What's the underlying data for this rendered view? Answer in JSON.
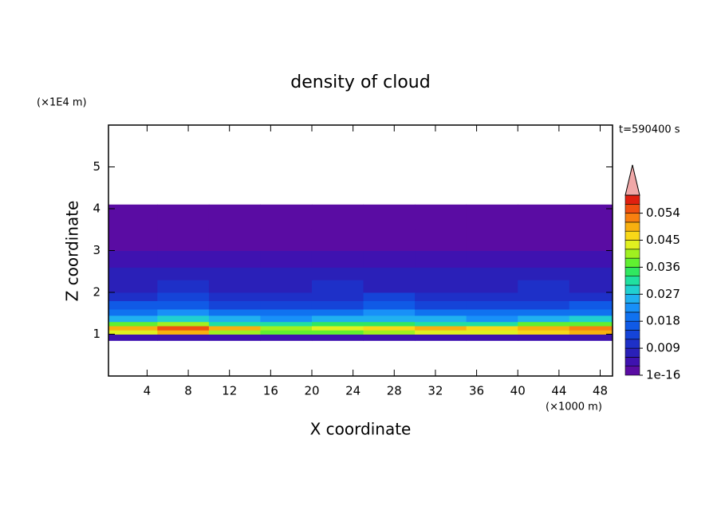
{
  "chart_data": {
    "type": "heatmap",
    "title": "density of cloud",
    "x_label": "X coordinate",
    "y_label": "Z coordinate",
    "x_unit": "(×1000 m)",
    "y_unit": "(×1E4 m)",
    "annotation": "t=590400 s",
    "xlim": [
      0.25,
      49.2
    ],
    "xticks": [
      4,
      8,
      12,
      16,
      20,
      24,
      28,
      32,
      36,
      40,
      44,
      48
    ],
    "ylim": [
      0,
      6
    ],
    "yticks": [
      1,
      2,
      3,
      4,
      5
    ],
    "x_edges": [
      0.25,
      5,
      10,
      15,
      20,
      25,
      30,
      35,
      40,
      45,
      49.2
    ],
    "y_edges": [
      0.85,
      1.0,
      1.1,
      1.2,
      1.3,
      1.45,
      1.6,
      1.8,
      2.0,
      2.3,
      2.6,
      3.0,
      3.5,
      4.1
    ],
    "values": [
      [
        0.004,
        0.005,
        0.004,
        0.004,
        0.005,
        0.004,
        0.004,
        0.005,
        0.004,
        0.004
      ],
      [
        0.042,
        0.048,
        0.04,
        0.036,
        0.038,
        0.04,
        0.044,
        0.042,
        0.046,
        0.05
      ],
      [
        0.05,
        0.055,
        0.048,
        0.04,
        0.042,
        0.045,
        0.048,
        0.046,
        0.05,
        0.052
      ],
      [
        0.036,
        0.04,
        0.032,
        0.03,
        0.034,
        0.033,
        0.03,
        0.032,
        0.036,
        0.038
      ],
      [
        0.026,
        0.028,
        0.024,
        0.022,
        0.025,
        0.026,
        0.024,
        0.023,
        0.025,
        0.027
      ],
      [
        0.02,
        0.021,
        0.019,
        0.018,
        0.02,
        0.021,
        0.019,
        0.018,
        0.019,
        0.02
      ],
      [
        0.015,
        0.016,
        0.014,
        0.013,
        0.014,
        0.015,
        0.014,
        0.013,
        0.014,
        0.015
      ],
      [
        0.011,
        0.012,
        0.011,
        0.01,
        0.011,
        0.012,
        0.011,
        0.01,
        0.011,
        0.011
      ],
      [
        0.008,
        0.009,
        0.008,
        0.008,
        0.009,
        0.008,
        0.008,
        0.008,
        0.009,
        0.008
      ],
      [
        0.006,
        0.007,
        0.006,
        0.006,
        0.006,
        0.007,
        0.006,
        0.006,
        0.006,
        0.007
      ],
      [
        0.004,
        0.004,
        0.004,
        0.004,
        0.003,
        0.003,
        0.003,
        0.004,
        0.004,
        0.004
      ],
      [
        0.002,
        0.002,
        0.002,
        0.002,
        0.002,
        0.001,
        0.001,
        0.002,
        0.002,
        0.002
      ],
      [
        0.001,
        0.001,
        0.001,
        0.001,
        0.001,
        0.001,
        0.001,
        0.001,
        0.001,
        0.001
      ]
    ],
    "clim": [
      1e-16,
      0.06
    ],
    "levels": [
      1e-16,
      0.003,
      0.006,
      0.009,
      0.012,
      0.015,
      0.018,
      0.021,
      0.024,
      0.027,
      0.03,
      0.033,
      0.036,
      0.039,
      0.042,
      0.045,
      0.048,
      0.051,
      0.054,
      0.057
    ],
    "colors": [
      "#5a0ca3",
      "#3f12b0",
      "#2a20b8",
      "#1e30c8",
      "#1544d8",
      "#105ae6",
      "#1072f0",
      "#1890f8",
      "#20b0f0",
      "#20d0d0",
      "#20e0a0",
      "#30e860",
      "#60f030",
      "#a0f020",
      "#e0f020",
      "#f8d818",
      "#f8b010",
      "#f88010",
      "#f05010",
      "#e02010"
    ],
    "extend_color": "#f0a8a8",
    "cticks": [
      {
        "value": 1e-16,
        "label": "1e-16"
      },
      0.009,
      0.018,
      0.027,
      0.036,
      0.045,
      0.054
    ]
  }
}
